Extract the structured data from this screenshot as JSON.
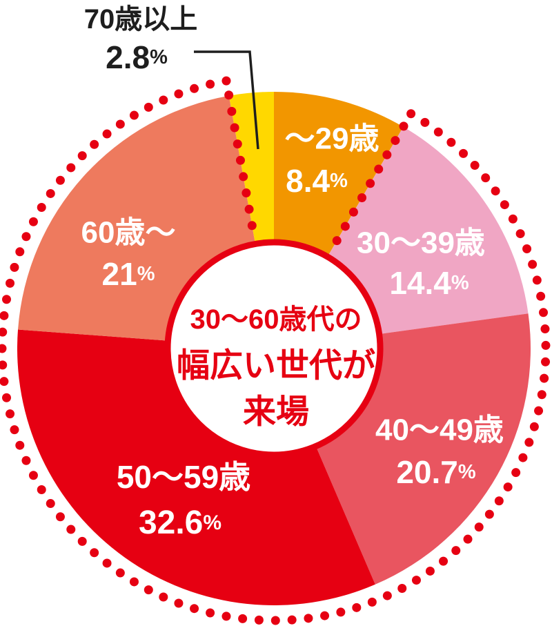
{
  "chart_data": {
    "type": "pie",
    "title": "",
    "direction": "clockwise",
    "start_angle_deg": 0,
    "legend": "none",
    "background": "#ffffff",
    "center_text": {
      "lines": [
        "30〜60歳代の",
        "幅広い世代が",
        "来場"
      ],
      "color": "#e60012",
      "line_y": [
        463,
        530,
        597
      ],
      "line_font": [
        40,
        48,
        48
      ]
    },
    "categories": [
      "〜29歳",
      "30〜39歳",
      "40〜49歳",
      "50〜59歳",
      "60歳〜",
      "70歳以上"
    ],
    "values": [
      8.4,
      14.4,
      20.7,
      32.6,
      21,
      2.8
    ],
    "segments": [
      {
        "label": "〜29歳",
        "value": 8.4,
        "pct": "8.4",
        "unit": "%",
        "color": "#f29600",
        "text_color": "#ffffff",
        "outside": false,
        "label_pos": [
          481,
          201
        ],
        "pct_pos": [
          459,
          262
        ],
        "label_font": 44,
        "pct_font": 46
      },
      {
        "label": "30〜39歳",
        "value": 14.4,
        "pct": "14.4",
        "unit": "%",
        "color": "#f0a6c4",
        "text_color": "#ffffff",
        "outside": false,
        "label_pos": [
          610,
          352
        ],
        "pct_pos": [
          622,
          410
        ],
        "label_font": 44,
        "pct_font": 46
      },
      {
        "label": "40〜49歳",
        "value": 20.7,
        "pct": "20.7",
        "unit": "%",
        "color": "#e95560",
        "text_color": "#ffffff",
        "outside": false,
        "label_pos": [
          637,
          623
        ],
        "pct_pos": [
          632,
          684
        ],
        "label_font": 44,
        "pct_font": 46
      },
      {
        "label": "50〜59歳",
        "value": 32.6,
        "pct": "32.6",
        "unit": "%",
        "color": "#e60012",
        "text_color": "#ffffff",
        "outside": false,
        "label_pos": [
          266,
          691
        ],
        "pct_pos": [
          261,
          757
        ],
        "label_font": 46,
        "pct_font": 48
      },
      {
        "label": "60歳〜",
        "value": 21,
        "pct": "21",
        "unit": "%",
        "color": "#ee7a5e",
        "text_color": "#ffffff",
        "outside": false,
        "label_pos": [
          186,
          337
        ],
        "pct_pos": [
          186,
          397
        ],
        "label_font": 44,
        "pct_font": 46
      },
      {
        "label": "70歳以上",
        "value": 2.8,
        "pct": "2.8",
        "unit": "%",
        "color": "#ffd800",
        "text_color": "#1e1e1e",
        "outside": true,
        "label_pos": [
          204,
          28
        ],
        "pct_pos": [
          198,
          83
        ],
        "label_font": 40,
        "pct_font": 46,
        "leader_line": [
          [
            281,
            75
          ],
          [
            362,
            75
          ],
          [
            374,
            216
          ]
        ],
        "leader_color": "#1e1e1e"
      }
    ],
    "highlight": {
      "description": "dotted red outline enclosing the 30s-to-60s segments",
      "start_segment_index": 1,
      "end_segment_index": 4,
      "color": "#e60012",
      "style": "dotted"
    },
    "ring_color": "#e60012"
  }
}
